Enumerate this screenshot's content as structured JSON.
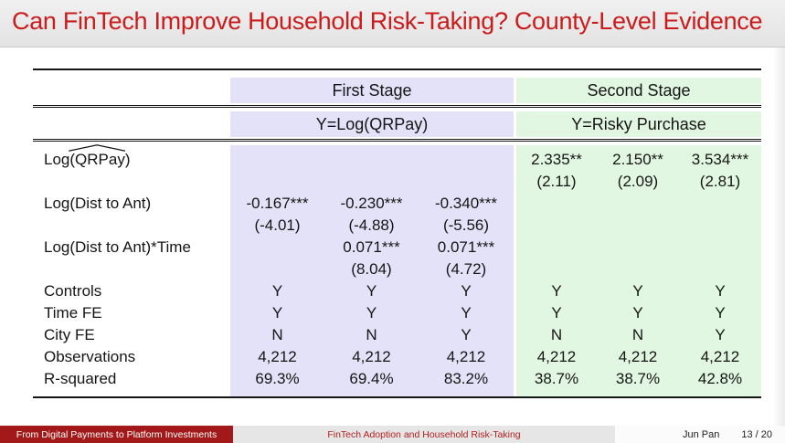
{
  "title": "Can FinTech Improve Household Risk-Taking? County-Level Evidence",
  "colors": {
    "title_red": "#cc1b1b",
    "first_stage_bg": "#e3e2f8",
    "second_stage_bg": "#e1f7e1",
    "footer_left_bg": "#a31919",
    "footer_center_bg": "#e6e6e6",
    "footer_center_text": "#b51f1f"
  },
  "table": {
    "stage_headers": [
      {
        "label": "First Stage",
        "span": 3
      },
      {
        "label": "Second Stage",
        "span": 3
      }
    ],
    "dep_headers": [
      {
        "label": "Y=Log(QRPay)"
      },
      {
        "label": "Y=Risky Purchase"
      }
    ],
    "rows": [
      {
        "label": "Log(QRPay)",
        "hat": true,
        "cells": [
          "",
          "",
          "",
          "2.335**",
          "2.150**",
          "3.534***"
        ],
        "tstats": [
          "",
          "",
          "",
          "(2.11)",
          "(2.09)",
          "(2.81)"
        ]
      },
      {
        "label": "Log(Dist to Ant)",
        "cells": [
          "-0.167***",
          "-0.230***",
          "-0.340***",
          "",
          "",
          ""
        ],
        "tstats": [
          "(-4.01)",
          "(-4.88)",
          "(-5.56)",
          "",
          "",
          ""
        ]
      },
      {
        "label": "Log(Dist to Ant)*Time",
        "cells": [
          "",
          "0.071***",
          "0.071***",
          "",
          "",
          ""
        ],
        "tstats": [
          "",
          "(8.04)",
          "(4.72)",
          "",
          "",
          ""
        ]
      },
      {
        "label": "Controls",
        "cells": [
          "Y",
          "Y",
          "Y",
          "Y",
          "Y",
          "Y"
        ]
      },
      {
        "label": "Time FE",
        "cells": [
          "Y",
          "Y",
          "Y",
          "Y",
          "Y",
          "Y"
        ]
      },
      {
        "label": "City FE",
        "cells": [
          "N",
          "N",
          "Y",
          "N",
          "N",
          "Y"
        ]
      },
      {
        "label": "Observations",
        "cells": [
          "4,212",
          "4,212",
          "4,212",
          "4,212",
          "4,212",
          "4,212"
        ]
      },
      {
        "label": "R-squared",
        "cells": [
          "69.3%",
          "69.4%",
          "83.2%",
          "38.7%",
          "38.7%",
          "42.8%"
        ]
      }
    ]
  },
  "footer": {
    "left": "From Digital Payments to Platform Investments",
    "center": "FinTech Adoption and Household Risk-Taking",
    "author": "Jun Pan",
    "page": "13 / 20"
  }
}
